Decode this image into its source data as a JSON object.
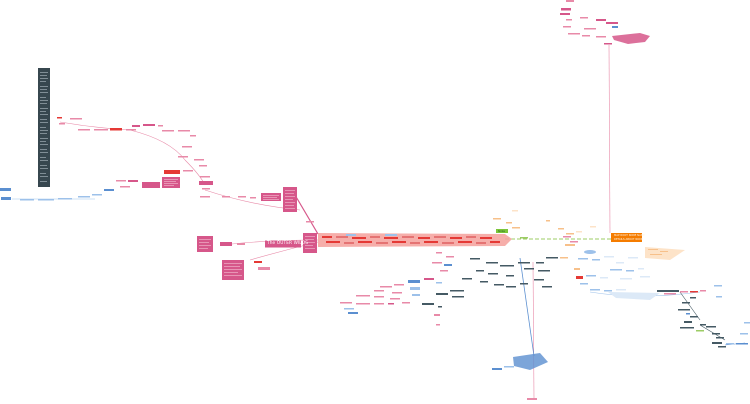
{
  "mindmap": {
    "legible_labels": {
      "outer_wilds": "The OUTER WILDS",
      "hub_line1": "MAP ROOT NODE NAME",
      "hub_line2": "DETAILS ABOUT NODE",
      "green_node": "Nodes"
    },
    "colors": {
      "pink": "#d6578a",
      "pink_light": "#e88aa8",
      "salmon": "#f28b82",
      "red": "#e53935",
      "coral_fill": "#f4a09b",
      "blue": "#5b8fd0",
      "blue_light": "#9dc1ea",
      "blue_pale": "#dce9f7",
      "slate": "#455a64",
      "green": "#7cc63a",
      "orange": "#f57c00",
      "peach": "#f7c08a",
      "peach_light": "#fde3c8",
      "dark_panel": "#37474f"
    }
  }
}
